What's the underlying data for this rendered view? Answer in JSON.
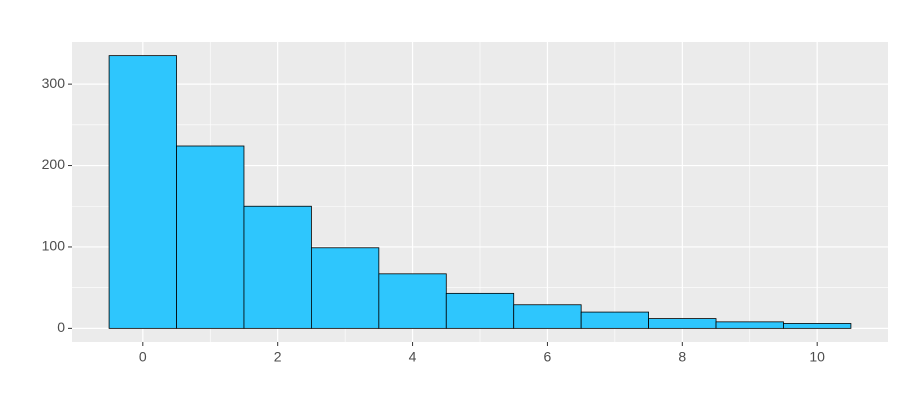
{
  "chart_data": {
    "type": "histogram",
    "bins": [
      -0.5,
      0.5,
      1.5,
      2.5,
      3.5,
      4.5,
      5.5,
      6.5,
      7.5,
      8.5,
      9.5,
      10.5
    ],
    "values": [
      335,
      224,
      150,
      99,
      67,
      43,
      29,
      20,
      12,
      8,
      6
    ],
    "color": "#2ec6fd",
    "edgecolor": "#000000",
    "xlim": [
      -1.05,
      11.05
    ],
    "ylim": [
      -16.75,
      351.75
    ],
    "xticks": [
      0,
      2,
      4,
      6,
      8,
      10
    ],
    "yticks": [
      0,
      100,
      200,
      300
    ],
    "xminorticks": [
      1,
      3,
      5,
      7,
      9
    ],
    "yminorticks": [
      50,
      150,
      250
    ],
    "grid": true
  }
}
